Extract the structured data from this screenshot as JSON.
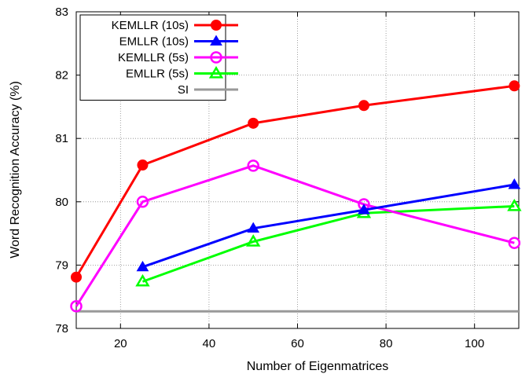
{
  "chart_data": {
    "type": "line",
    "title": "",
    "xlabel": "Number of Eigenmatrices",
    "ylabel": "Word Recognition Accuracy (%)",
    "xlim": [
      10,
      110
    ],
    "ylim": [
      78,
      83
    ],
    "xticks": [
      20,
      40,
      60,
      80,
      100
    ],
    "yticks": [
      78,
      79,
      80,
      81,
      82,
      83
    ],
    "grid": true,
    "legend_position": "top-left",
    "series": [
      {
        "name": "KEMLLR (10s)",
        "color": "#ff0000",
        "marker": "filled-circle",
        "x": [
          10,
          25,
          50,
          75,
          109
        ],
        "y": [
          78.81,
          80.58,
          81.24,
          81.52,
          81.83
        ]
      },
      {
        "name": "EMLLR (10s)",
        "color": "#0000ff",
        "marker": "filled-triangle",
        "x": [
          25,
          50,
          75,
          109
        ],
        "y": [
          78.97,
          79.58,
          79.87,
          80.27
        ]
      },
      {
        "name": "KEMLLR (5s)",
        "color": "#ff00ff",
        "marker": "open-circle",
        "x": [
          10,
          25,
          50,
          75,
          109
        ],
        "y": [
          78.35,
          80.0,
          80.57,
          79.96,
          79.35
        ]
      },
      {
        "name": "EMLLR (5s)",
        "color": "#00ff00",
        "marker": "open-triangle",
        "x": [
          25,
          50,
          75,
          109
        ],
        "y": [
          78.74,
          79.37,
          79.82,
          79.93
        ]
      },
      {
        "name": "SI",
        "color": "#999999",
        "marker": "none",
        "x": [
          10,
          110
        ],
        "y": [
          78.27,
          78.27
        ]
      }
    ]
  }
}
